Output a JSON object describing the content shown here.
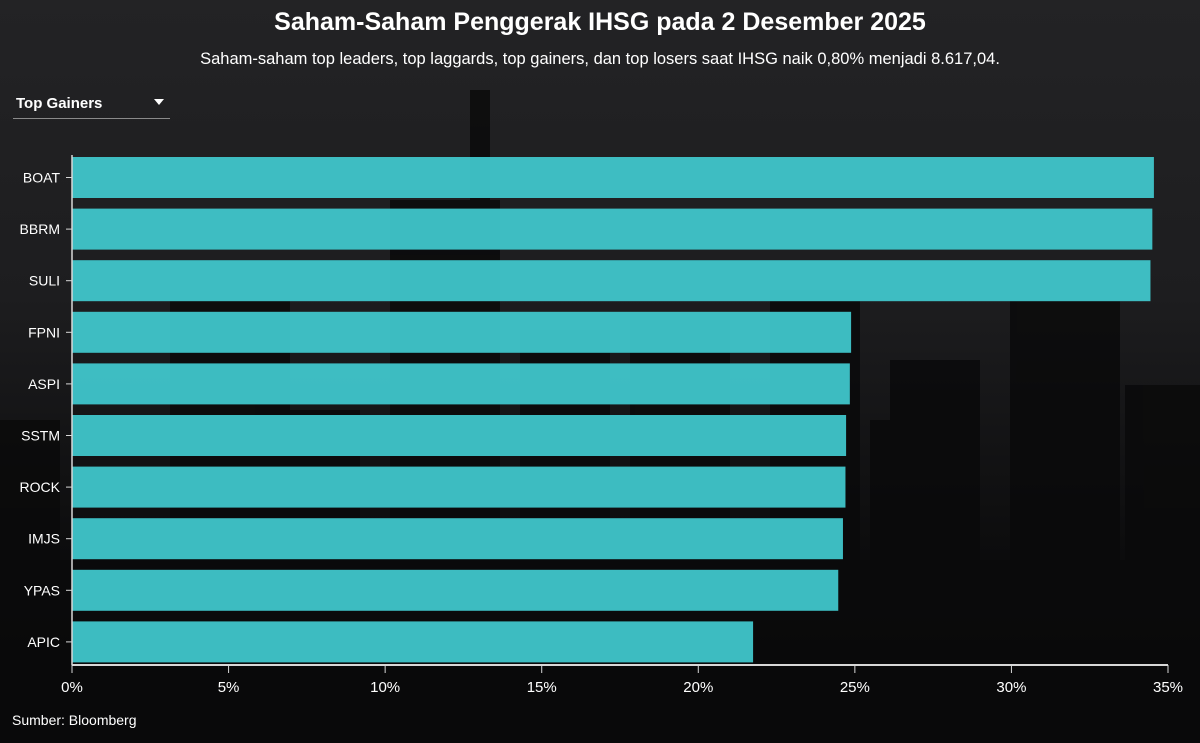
{
  "header": {
    "title": "Saham-Saham Penggerak IHSG pada 2 Desember 2025",
    "subtitle": "Saham-saham top leaders, top laggards, top gainers, dan top losers saat IHSG naik 0,80% menjadi 8.617,04."
  },
  "dropdown": {
    "selected": "Top Gainers",
    "icon": "caret-down-icon"
  },
  "footer": {
    "source": "Sumber: Bloomberg"
  },
  "colors": {
    "bar": "#40c4c9",
    "axis": "#d8d8d8",
    "text": "#ffffff"
  },
  "chart_data": {
    "type": "bar",
    "orientation": "horizontal",
    "categories": [
      "BOAT",
      "BBRM",
      "SULI",
      "FPNI",
      "ASPI",
      "SSTM",
      "ROCK",
      "IMJS",
      "YPAS",
      "APIC"
    ],
    "values": [
      34.55,
      34.5,
      34.44,
      24.88,
      24.84,
      24.72,
      24.7,
      24.62,
      24.47,
      21.75
    ],
    "unit": "%",
    "xlim": [
      0,
      35
    ],
    "xticks": [
      0,
      5,
      10,
      15,
      20,
      25,
      30,
      35
    ],
    "xtick_labels": [
      "0%",
      "5%",
      "10%",
      "15%",
      "20%",
      "25%",
      "30%",
      "35%"
    ],
    "grid": false,
    "legend": "none"
  }
}
